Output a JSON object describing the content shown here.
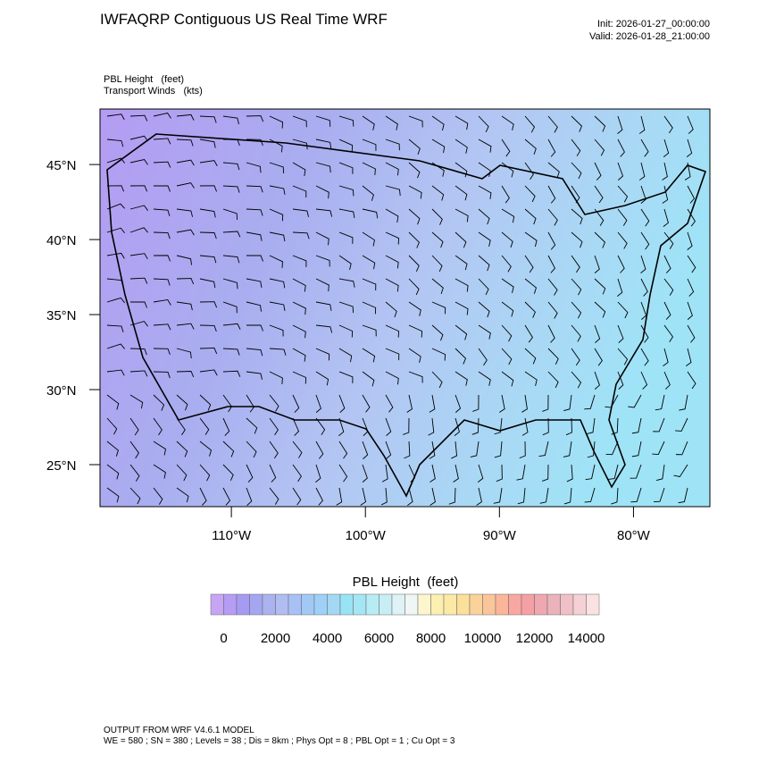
{
  "header": {
    "title": "IWFAQRP Contiguous US Real Time WRF",
    "init": "Init: 2026-01-27_00:00:00",
    "valid": "Valid: 2026-01-28_21:00:00"
  },
  "subtitle": [
    "PBL Height   (feet)",
    "Transport Winds   (kts)"
  ],
  "map": {
    "lat_ticks": [
      {
        "value": 45,
        "label": "45°N"
      },
      {
        "value": 40,
        "label": "40°N"
      },
      {
        "value": 35,
        "label": "35°N"
      },
      {
        "value": 30,
        "label": "30°N"
      },
      {
        "value": 25,
        "label": "25°N"
      }
    ],
    "lon_ticks": [
      {
        "value": -110,
        "label": "110°W"
      },
      {
        "value": -100,
        "label": "100°W"
      },
      {
        "value": -90,
        "label": "90°W"
      },
      {
        "value": -80,
        "label": "80°W"
      }
    ],
    "ylim": [
      22.2,
      48.7
    ],
    "xlim": [
      -119.8,
      -74.3
    ]
  },
  "colorbar": {
    "title": "PBL Height  (feet)",
    "lim": [
      -500,
      14500
    ],
    "ticks": [
      0,
      2000,
      4000,
      6000,
      8000,
      10000,
      12000,
      14000
    ],
    "colors": [
      "#c7a5f5",
      "#b59cf5",
      "#a69bf2",
      "#a4a6f0",
      "#aab3ef",
      "#b0bdf0",
      "#a8c0f5",
      "#a2c8f5",
      "#9fd0f7",
      "#a3d8f5",
      "#98e3f5",
      "#a5e6f5",
      "#b8ecf5",
      "#c8eef5",
      "#dff3f7",
      "#f0f6f5",
      "#fdf6cc",
      "#fbf0b0",
      "#fbe9a5",
      "#fbe09a",
      "#fbd39a",
      "#fbc59a",
      "#fbb69a",
      "#f8a8a0",
      "#f5a0a5",
      "#f0a8b0",
      "#eab2bb",
      "#f0c0c6",
      "#f5d0d5",
      "#fae2e3"
    ]
  },
  "footer": [
    "OUTPUT FROM WRF V4.6.1 MODEL",
    "WE = 580 ; SN = 380 ; Levels = 38 ; Dis = 8km ; Phys Opt = 8 ; PBL Opt = 1 ; Cu Opt = 3"
  ]
}
